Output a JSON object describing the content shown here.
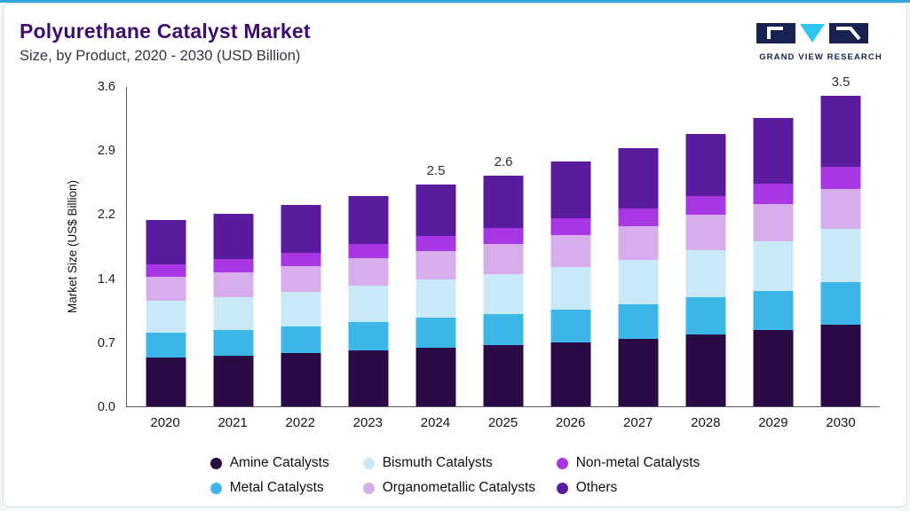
{
  "header": {
    "title": "Polyurethane Catalyst Market",
    "subtitle": "Size, by Product, 2020 - 2030 (USD Billion)",
    "logo_text": "GRAND VIEW RESEARCH"
  },
  "brand_colors": {
    "title_purple": "#3f0d6d",
    "logo_navy": "#18214f",
    "logo_cyan": "#2ec6f0",
    "top_accent_blue": "#38a6d8"
  },
  "chart_data": {
    "type": "bar",
    "stacked": true,
    "title": "Polyurethane Catalyst Market Size, by Product, 2020 - 2030 (USD Billion)",
    "ylabel": "Market Size (US$ Billion)",
    "xlabel": "",
    "ylim": [
      0,
      3.6
    ],
    "y_ticks": [
      "3.6",
      "2.9",
      "2.2",
      "1.4",
      "0.7",
      "0.0"
    ],
    "grid": false,
    "legend_position": "bottom",
    "categories": [
      "2020",
      "2021",
      "2022",
      "2023",
      "2024",
      "2025",
      "2026",
      "2027",
      "2028",
      "2029",
      "2030"
    ],
    "series": [
      {
        "name": "Amine Catalysts",
        "color": "#2a0a45",
        "values": [
          0.55,
          0.57,
          0.6,
          0.63,
          0.66,
          0.69,
          0.72,
          0.76,
          0.81,
          0.86,
          0.92
        ]
      },
      {
        "name": "Metal Catalysts",
        "color": "#3db7e8",
        "values": [
          0.28,
          0.29,
          0.3,
          0.32,
          0.34,
          0.35,
          0.37,
          0.39,
          0.42,
          0.44,
          0.48
        ]
      },
      {
        "name": "Bismuth Catalysts",
        "color": "#c9e9f9",
        "values": [
          0.36,
          0.37,
          0.39,
          0.41,
          0.43,
          0.45,
          0.48,
          0.5,
          0.53,
          0.56,
          0.6
        ]
      },
      {
        "name": "Organometallic Catalysts",
        "color": "#d8adec",
        "values": [
          0.27,
          0.28,
          0.29,
          0.31,
          0.32,
          0.34,
          0.36,
          0.38,
          0.4,
          0.42,
          0.45
        ]
      },
      {
        "name": "Non-metal Catalysts",
        "color": "#a637e2",
        "values": [
          0.14,
          0.15,
          0.15,
          0.16,
          0.17,
          0.18,
          0.19,
          0.2,
          0.21,
          0.23,
          0.25
        ]
      },
      {
        "name": "Others",
        "color": "#5b1b9e",
        "values": [
          0.5,
          0.51,
          0.54,
          0.54,
          0.58,
          0.59,
          0.64,
          0.68,
          0.7,
          0.74,
          0.8
        ]
      }
    ],
    "totals": [
      2.1,
      2.17,
      2.27,
      2.37,
      2.5,
      2.6,
      2.76,
      2.91,
      3.07,
      3.25,
      3.5
    ],
    "totals_labels": {
      "2024": "2.5",
      "2025": "2.6",
      "2030": "3.5"
    },
    "legend_order": [
      "Amine Catalysts",
      "Bismuth Catalysts",
      "Non-metal Catalysts",
      "Metal Catalysts",
      "Organometallic Catalysts",
      "Others"
    ]
  }
}
